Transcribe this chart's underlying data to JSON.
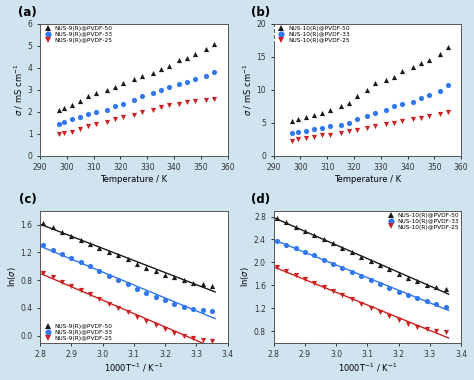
{
  "fig_bg": "#cfe4ef",
  "panel_bg": "#ffffff",
  "a_temp": [
    297,
    299,
    302,
    305,
    308,
    311,
    315,
    318,
    321,
    325,
    328,
    332,
    335,
    338,
    342,
    345,
    348,
    352,
    355
  ],
  "a_black": [
    2.1,
    2.15,
    2.3,
    2.5,
    2.7,
    2.85,
    3.0,
    3.15,
    3.3,
    3.5,
    3.65,
    3.75,
    3.95,
    4.1,
    4.35,
    4.45,
    4.65,
    4.85,
    5.1
  ],
  "a_blue": [
    1.45,
    1.55,
    1.65,
    1.75,
    1.9,
    2.0,
    2.1,
    2.25,
    2.35,
    2.55,
    2.7,
    2.85,
    3.0,
    3.15,
    3.25,
    3.35,
    3.5,
    3.65,
    3.8
  ],
  "a_red": [
    1.0,
    1.05,
    1.1,
    1.2,
    1.35,
    1.45,
    1.55,
    1.65,
    1.75,
    1.85,
    2.0,
    2.1,
    2.2,
    2.3,
    2.35,
    2.45,
    2.5,
    2.55,
    2.6
  ],
  "b_temp": [
    297,
    299,
    302,
    305,
    308,
    311,
    315,
    318,
    321,
    325,
    328,
    332,
    335,
    338,
    342,
    345,
    348,
    352,
    355
  ],
  "b_black": [
    5.2,
    5.5,
    5.8,
    6.2,
    6.5,
    7.0,
    7.5,
    8.0,
    9.0,
    10.0,
    11.0,
    11.5,
    12.0,
    12.8,
    13.5,
    14.0,
    14.5,
    15.5,
    16.5
  ],
  "b_blue": [
    3.5,
    3.6,
    3.8,
    4.0,
    4.2,
    4.5,
    4.7,
    5.0,
    5.5,
    6.0,
    6.5,
    7.0,
    7.5,
    7.8,
    8.2,
    8.8,
    9.2,
    9.8,
    10.7
  ],
  "b_red": [
    2.2,
    2.5,
    2.7,
    2.9,
    3.1,
    3.2,
    3.5,
    3.7,
    3.9,
    4.2,
    4.5,
    4.8,
    5.0,
    5.3,
    5.5,
    5.7,
    6.0,
    6.3,
    6.7
  ],
  "c_x": [
    2.81,
    2.84,
    2.87,
    2.9,
    2.93,
    2.96,
    2.99,
    3.02,
    3.05,
    3.08,
    3.11,
    3.14,
    3.17,
    3.2,
    3.23,
    3.26,
    3.29,
    3.32,
    3.35
  ],
  "c_black": [
    1.63,
    1.56,
    1.5,
    1.44,
    1.38,
    1.32,
    1.27,
    1.21,
    1.16,
    1.1,
    1.04,
    0.98,
    0.93,
    0.88,
    0.84,
    0.8,
    0.76,
    0.74,
    0.72
  ],
  "c_blue": [
    1.3,
    1.24,
    1.18,
    1.12,
    1.06,
    1.0,
    0.93,
    0.86,
    0.8,
    0.74,
    0.68,
    0.62,
    0.56,
    0.51,
    0.46,
    0.42,
    0.39,
    0.37,
    0.35
  ],
  "c_red": [
    0.9,
    0.84,
    0.78,
    0.72,
    0.66,
    0.6,
    0.53,
    0.46,
    0.4,
    0.34,
    0.27,
    0.21,
    0.15,
    0.09,
    0.04,
    -0.01,
    -0.04,
    -0.06,
    -0.08
  ],
  "d_x": [
    2.81,
    2.84,
    2.87,
    2.9,
    2.93,
    2.96,
    2.99,
    3.02,
    3.05,
    3.08,
    3.11,
    3.14,
    3.17,
    3.2,
    3.23,
    3.26,
    3.29,
    3.32,
    3.35
  ],
  "d_black": [
    2.78,
    2.7,
    2.62,
    2.55,
    2.47,
    2.4,
    2.33,
    2.25,
    2.18,
    2.1,
    2.02,
    1.95,
    1.88,
    1.8,
    1.73,
    1.67,
    1.61,
    1.57,
    1.54
  ],
  "d_blue": [
    2.38,
    2.31,
    2.25,
    2.18,
    2.12,
    2.05,
    1.98,
    1.91,
    1.84,
    1.77,
    1.7,
    1.63,
    1.56,
    1.49,
    1.43,
    1.37,
    1.32,
    1.27,
    1.23
  ],
  "d_red": [
    1.92,
    1.85,
    1.78,
    1.71,
    1.64,
    1.57,
    1.5,
    1.43,
    1.36,
    1.28,
    1.21,
    1.14,
    1.07,
    1.0,
    0.93,
    0.88,
    0.84,
    0.81,
    0.79
  ],
  "colors": [
    "#1a1a1a",
    "#3377ee",
    "#cc2222"
  ],
  "labels_a": [
    "NUS-9(R)@PVDF-50",
    "NUS-9(R)@PVDF-33",
    "NUS-9(R)@PVDF-25"
  ],
  "labels_b": [
    "NUS-10(R)@PVDF-50",
    "NUS-10(R)@PVDF-33",
    "NUS-10(R)@PVDF-25"
  ],
  "labels_cd_a": [
    "NUS-9(R)@PVDF-50",
    "NUS-9(R)@PVDF-33",
    "NUS-9(R)@PVDF-25"
  ],
  "labels_cd_b": [
    "NUS-10(R)@PVDF-50",
    "NUS-10(R)@PVDF-33",
    "NUS-10(R)@PVDF-25"
  ]
}
